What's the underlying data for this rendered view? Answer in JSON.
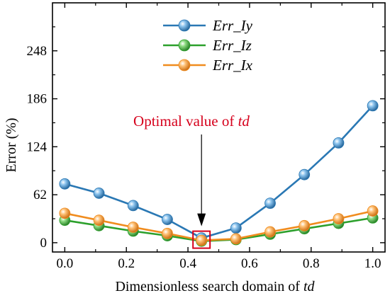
{
  "chart_data": {
    "type": "line",
    "xlabel": "Dimensionless search domain of",
    "xlabel_italic": "td",
    "ylabel": "Error  (%)",
    "xlim": [
      -0.04,
      1.04
    ],
    "ylim": [
      -12,
      310
    ],
    "xticks": [
      "0.0",
      "0.2",
      "0.4",
      "0.6",
      "0.8",
      "1.0"
    ],
    "xtick_values": [
      0.0,
      0.2,
      0.4,
      0.6,
      0.8,
      1.0
    ],
    "yticks": [
      "0",
      "62",
      "124",
      "186",
      "248"
    ],
    "ytick_values": [
      0,
      62,
      124,
      186,
      248
    ],
    "x": [
      0.0,
      0.111,
      0.222,
      0.333,
      0.444,
      0.556,
      0.667,
      0.778,
      0.889,
      1.0
    ],
    "series": [
      {
        "name": "Err_Iy",
        "color": "#2a78b4",
        "values": [
          76,
          64,
          48,
          30,
          6,
          19,
          51,
          88,
          129,
          177
        ]
      },
      {
        "name": "Err_Iz",
        "color": "#2ca02c",
        "values": [
          29,
          22,
          15,
          9,
          2,
          4,
          11,
          18,
          25,
          32
        ]
      },
      {
        "name": "Err_Ix",
        "color": "#f08c1e",
        "values": [
          38,
          29,
          20,
          12,
          3,
          5,
          14,
          22,
          31,
          41
        ]
      }
    ],
    "legend_position": "top-center",
    "annotation": {
      "text": "Optimal value of",
      "text_italic": "td",
      "color": "#d6001c",
      "target_x": 0.444,
      "target_y": 3
    },
    "grid": false
  }
}
